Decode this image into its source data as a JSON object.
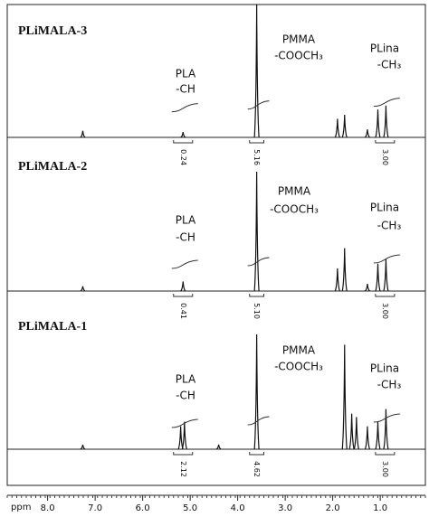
{
  "chart_data": {
    "type": "nmr",
    "xlabel": "ppm",
    "xlim": [
      8.85,
      0.05
    ],
    "xticks": [
      {
        "value": 8,
        "label": "8.0"
      },
      {
        "value": 7,
        "label": "7.0"
      },
      {
        "value": 6,
        "label": "6.0"
      },
      {
        "value": 5,
        "label": "5.0"
      },
      {
        "value": 4,
        "label": "4.0"
      },
      {
        "value": 3,
        "label": "3.0"
      },
      {
        "value": 2,
        "label": "2.0"
      },
      {
        "value": 1,
        "label": "1.0"
      }
    ],
    "panels": [
      {
        "title": "PLiMALA-3",
        "annotations": [
          "PLA",
          "-CH",
          "PMMA",
          "-COOCH₃",
          "PLina",
          "-CH₃"
        ],
        "peaks": [
          {
            "ppm": 7.26,
            "intensity": 5
          },
          {
            "ppm": 5.15,
            "intensity": 4
          },
          {
            "ppm": 3.6,
            "intensity": 100
          },
          {
            "ppm": 1.9,
            "intensity": 14
          },
          {
            "ppm": 1.75,
            "intensity": 17
          },
          {
            "ppm": 1.27,
            "intensity": 6
          },
          {
            "ppm": 1.05,
            "intensity": 21
          },
          {
            "ppm": 0.88,
            "intensity": 24
          }
        ],
        "integrals": [
          {
            "value": 0.24,
            "label": "0.24",
            "from": 5.35,
            "to": 4.95
          },
          {
            "value": 5.16,
            "label": "5.16",
            "from": 3.75,
            "to": 3.45
          },
          {
            "value": 3,
            "label": "3.00",
            "from": 1.1,
            "to": 0.7
          }
        ]
      },
      {
        "title": "PLiMALA-2",
        "annotations": [
          "PLA",
          "-CH",
          "PMMA",
          "-COOCH₃",
          "PLina",
          "-CH₃"
        ],
        "peaks": [
          {
            "ppm": 7.26,
            "intensity": 4
          },
          {
            "ppm": 5.15,
            "intensity": 8
          },
          {
            "ppm": 3.6,
            "intensity": 100
          },
          {
            "ppm": 1.9,
            "intensity": 19
          },
          {
            "ppm": 1.75,
            "intensity": 36
          },
          {
            "ppm": 1.27,
            "intensity": 6
          },
          {
            "ppm": 1.05,
            "intensity": 23
          },
          {
            "ppm": 0.88,
            "intensity": 27
          }
        ],
        "integrals": [
          {
            "value": 0.41,
            "label": "0.41",
            "from": 5.35,
            "to": 4.95
          },
          {
            "value": 5.1,
            "label": "5.10",
            "from": 3.75,
            "to": 3.45
          },
          {
            "value": 3,
            "label": "3.00",
            "from": 1.1,
            "to": 0.7
          }
        ]
      },
      {
        "title": "PLiMALA-1",
        "annotations": [
          "PLA",
          "-CH",
          "PMMA",
          "-COOCH₃",
          "PLina",
          "-CH₃"
        ],
        "peaks": [
          {
            "ppm": 7.26,
            "intensity": 4
          },
          {
            "ppm": 5.2,
            "intensity": 20
          },
          {
            "ppm": 5.12,
            "intensity": 24
          },
          {
            "ppm": 4.4,
            "intensity": 4
          },
          {
            "ppm": 3.6,
            "intensity": 100
          },
          {
            "ppm": 1.75,
            "intensity": 91
          },
          {
            "ppm": 1.6,
            "intensity": 31
          },
          {
            "ppm": 1.5,
            "intensity": 28
          },
          {
            "ppm": 1.27,
            "intensity": 20
          },
          {
            "ppm": 1.05,
            "intensity": 24
          },
          {
            "ppm": 0.88,
            "intensity": 35
          }
        ],
        "integrals": [
          {
            "value": 2.12,
            "label": "2.12",
            "from": 5.35,
            "to": 4.95
          },
          {
            "value": 4.62,
            "label": "4.62",
            "from": 3.75,
            "to": 3.45
          },
          {
            "value": 3,
            "label": "3.00",
            "from": 1.1,
            "to": 0.7
          }
        ]
      }
    ]
  }
}
